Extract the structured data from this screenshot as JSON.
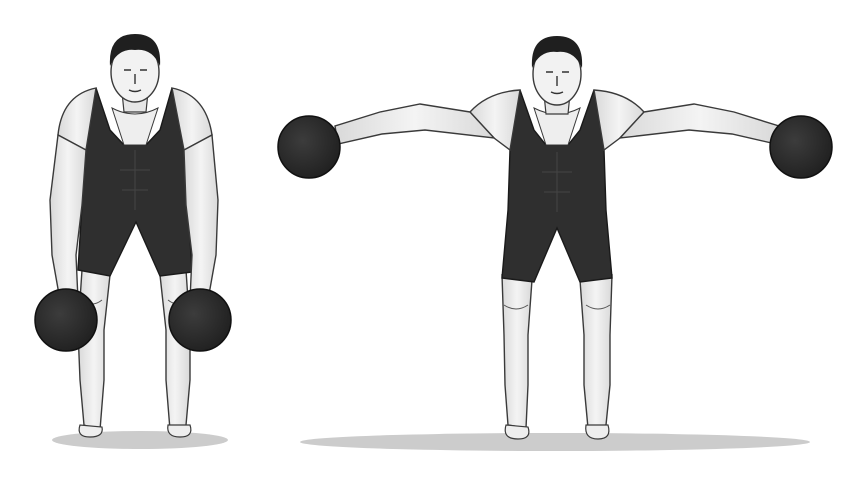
{
  "figures": [
    {
      "pose": "start",
      "arms": "hanging-down",
      "dumbbells": "at-knees"
    },
    {
      "pose": "raise",
      "arms": "extended-sideways",
      "dumbbells": "at-shoulder-height"
    }
  ],
  "colors": {
    "background": "#ffffff",
    "outfit": "#2f2f2f",
    "skin": "#eeeeee",
    "line": "#3a3a3a",
    "hair": "#1f1f1f",
    "dumbbell": "#2e2e2e",
    "shadow": "#c8c8c8"
  }
}
